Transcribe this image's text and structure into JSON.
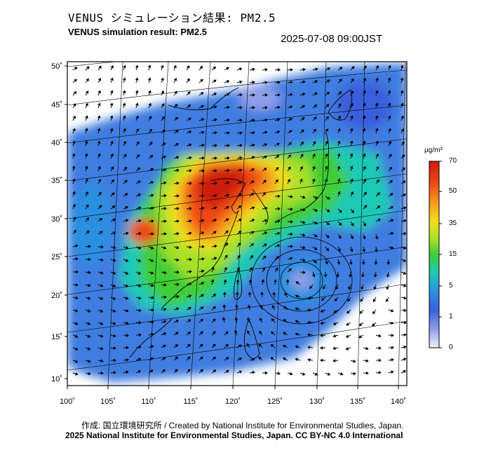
{
  "title_jp": "VENUS シミュレーション結果: PM2.5",
  "title_en": "VENUS simulation result: PM2.5",
  "timestamp": "2025-07-08 09:00JST",
  "lat_labels": [
    "50˚",
    "45˚",
    "40˚",
    "35˚",
    "30˚",
    "25˚",
    "20˚",
    "15˚",
    "10˚"
  ],
  "lon_labels": [
    "100˚",
    "105˚",
    "110˚",
    "115˚",
    "120˚",
    "125˚",
    "130˚",
    "135˚",
    "140˚"
  ],
  "colorbar": {
    "unit": "µg/m³",
    "ticks": [
      "70",
      "50",
      "35",
      "15",
      "5",
      "1",
      "0"
    ],
    "colors": [
      "#cc1a10",
      "#ef4a16",
      "#f59a1b",
      "#f2de1f",
      "#a6e02a",
      "#3fcd35",
      "#1fc9b6",
      "#2a8fe0",
      "#3a5fdc",
      "#8e9ee8",
      "#f2f2fb"
    ]
  },
  "credit": "作成: 国立環境研究所 / Created by National Institute for Environmental Studies, Japan.",
  "license": "2025 National Institute for Environmental Studies, Japan. CC BY-NC 4.0 International"
}
